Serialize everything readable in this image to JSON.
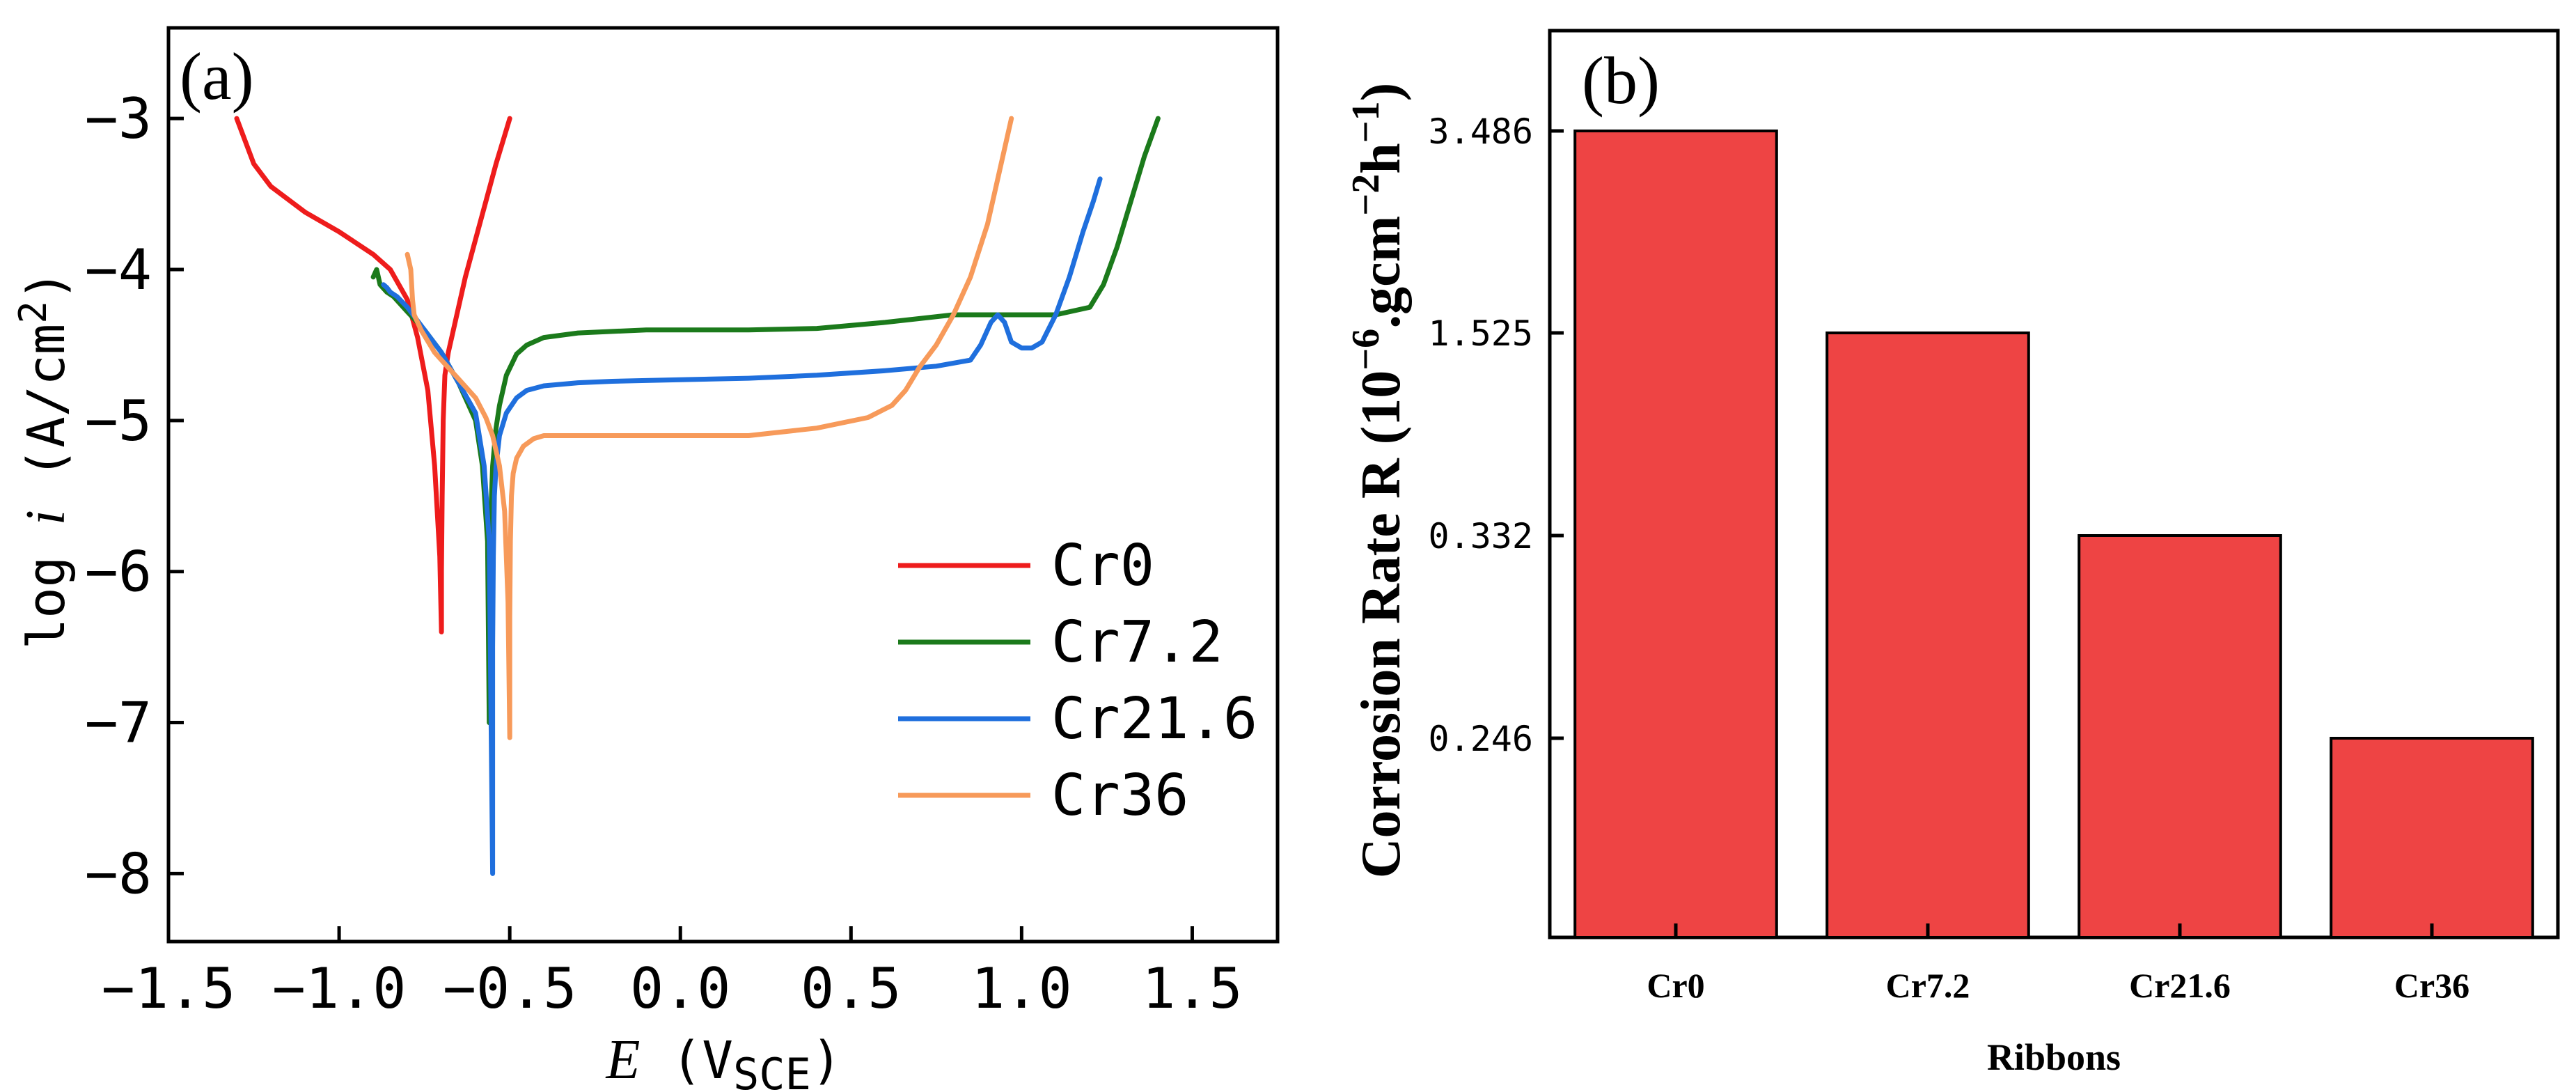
{
  "chart_data": [
    {
      "type": "line",
      "panel_label": "(a)",
      "xlabel": {
        "symbol": "E",
        "unit_open": " (V",
        "unit_sub": "SCE",
        "unit_close": ")"
      },
      "ylabel": {
        "prefix": "log ",
        "symbol": "i",
        "unit_open": " (A/cm",
        "unit_sup": "2",
        "unit_close": ")"
      },
      "xlim": [
        -1.5,
        1.75
      ],
      "ylim": [
        -8.45,
        -2.4
      ],
      "xticks": [
        -1.5,
        -1.0,
        -0.5,
        0.0,
        0.5,
        1.0,
        1.5
      ],
      "xtick_labels": [
        "−1.5",
        "−1.0",
        "−0.5",
        "0.0",
        "0.5",
        "1.0",
        "1.5"
      ],
      "yticks": [
        -3,
        -4,
        -5,
        -6,
        -7,
        -8
      ],
      "ytick_labels": [
        "−3",
        "−4",
        "−5",
        "−6",
        "−7",
        "−8"
      ],
      "legend_position": "lower-right",
      "series": [
        {
          "name": "Cr0",
          "color": "#ee1c1c",
          "x": [
            -1.3,
            -1.25,
            -1.2,
            -1.1,
            -1.0,
            -0.9,
            -0.85,
            -0.8,
            -0.77,
            -0.74,
            -0.72,
            -0.705,
            -0.7,
            -0.7,
            -0.698,
            -0.695,
            -0.69,
            -0.68,
            -0.66,
            -0.63,
            -0.6,
            -0.57,
            -0.54,
            -0.52,
            -0.5
          ],
          "y": [
            -3.0,
            -3.3,
            -3.45,
            -3.62,
            -3.75,
            -3.9,
            -4.0,
            -4.2,
            -4.45,
            -4.8,
            -5.3,
            -5.9,
            -6.4,
            -6.0,
            -5.5,
            -5.0,
            -4.7,
            -4.55,
            -4.35,
            -4.05,
            -3.8,
            -3.55,
            -3.3,
            -3.15,
            -3.0
          ]
        },
        {
          "name": "Cr7.2",
          "color": "#1b7a1b",
          "x": [
            -0.9,
            -0.89,
            -0.88,
            -0.86,
            -0.84,
            -0.8,
            -0.75,
            -0.7,
            -0.65,
            -0.6,
            -0.58,
            -0.565,
            -0.56,
            -0.56,
            -0.555,
            -0.55,
            -0.54,
            -0.53,
            -0.51,
            -0.48,
            -0.45,
            -0.4,
            -0.3,
            -0.2,
            -0.1,
            0.0,
            0.2,
            0.4,
            0.6,
            0.8,
            1.0,
            1.1,
            1.2,
            1.24,
            1.28,
            1.32,
            1.36,
            1.4
          ],
          "y": [
            -4.05,
            -4.0,
            -4.1,
            -4.15,
            -4.18,
            -4.28,
            -4.4,
            -4.55,
            -4.75,
            -5.0,
            -5.3,
            -5.8,
            -7.0,
            -6.2,
            -5.6,
            -5.3,
            -5.05,
            -4.9,
            -4.7,
            -4.56,
            -4.5,
            -4.45,
            -4.42,
            -4.41,
            -4.4,
            -4.4,
            -4.4,
            -4.39,
            -4.35,
            -4.3,
            -4.3,
            -4.3,
            -4.25,
            -4.1,
            -3.85,
            -3.55,
            -3.25,
            -3.0
          ]
        },
        {
          "name": "Cr21.6",
          "color": "#1f6fdd",
          "x": [
            -0.87,
            -0.86,
            -0.85,
            -0.83,
            -0.8,
            -0.75,
            -0.7,
            -0.65,
            -0.6,
            -0.575,
            -0.56,
            -0.55,
            -0.55,
            -0.548,
            -0.545,
            -0.54,
            -0.53,
            -0.51,
            -0.48,
            -0.45,
            -0.4,
            -0.3,
            -0.2,
            0.0,
            0.2,
            0.4,
            0.6,
            0.75,
            0.85,
            0.88,
            0.91,
            0.93,
            0.95,
            0.97,
            1.0,
            1.03,
            1.06,
            1.1,
            1.14,
            1.18,
            1.21,
            1.23
          ],
          "y": [
            -4.1,
            -4.12,
            -4.15,
            -4.18,
            -4.25,
            -4.4,
            -4.55,
            -4.75,
            -4.95,
            -5.3,
            -5.8,
            -8.0,
            -6.5,
            -5.9,
            -5.5,
            -5.3,
            -5.1,
            -4.95,
            -4.85,
            -4.8,
            -4.77,
            -4.75,
            -4.74,
            -4.73,
            -4.72,
            -4.7,
            -4.67,
            -4.64,
            -4.6,
            -4.5,
            -4.35,
            -4.3,
            -4.35,
            -4.48,
            -4.52,
            -4.52,
            -4.48,
            -4.3,
            -4.05,
            -3.75,
            -3.55,
            -3.4
          ]
        },
        {
          "name": "Cr36",
          "color": "#f79a5a",
          "x": [
            -0.8,
            -0.79,
            -0.785,
            -0.78,
            -0.76,
            -0.72,
            -0.68,
            -0.64,
            -0.6,
            -0.57,
            -0.55,
            -0.53,
            -0.515,
            -0.505,
            -0.5,
            -0.5,
            -0.498,
            -0.495,
            -0.49,
            -0.48,
            -0.46,
            -0.43,
            -0.4,
            -0.35,
            -0.3,
            -0.2,
            0.0,
            0.2,
            0.4,
            0.55,
            0.62,
            0.66,
            0.7,
            0.75,
            0.8,
            0.85,
            0.9,
            0.94,
            0.97
          ],
          "y": [
            -3.9,
            -4.0,
            -4.2,
            -4.3,
            -4.4,
            -4.55,
            -4.65,
            -4.75,
            -4.85,
            -4.98,
            -5.1,
            -5.3,
            -5.6,
            -6.2,
            -7.1,
            -6.3,
            -5.8,
            -5.5,
            -5.35,
            -5.25,
            -5.17,
            -5.12,
            -5.1,
            -5.1,
            -5.1,
            -5.1,
            -5.1,
            -5.1,
            -5.05,
            -4.98,
            -4.9,
            -4.8,
            -4.65,
            -4.5,
            -4.3,
            -4.05,
            -3.7,
            -3.3,
            -3.0
          ]
        }
      ]
    },
    {
      "type": "bar",
      "panel_label": "(b)",
      "ylabel": {
        "text_pre": "Corrosion Rate R (10",
        "sup1": "−6",
        "text_mid": ".gcm",
        "sup2": "−2",
        "text_mid2": "h",
        "sup3": "−1",
        "text_post": ")"
      },
      "xlabel": "Ribbons",
      "categories": [
        "Cr0",
        "Cr7.2",
        "Cr21.6",
        "Cr36"
      ],
      "values": [
        3.486,
        1.525,
        0.332,
        0.246
      ],
      "ytick_labels": [
        "3.486",
        "1.525",
        "0.332",
        "0.246"
      ],
      "scale": "categorical-level (ticks placed at each bar value level)",
      "bar_color": "#ee4444"
    }
  ]
}
